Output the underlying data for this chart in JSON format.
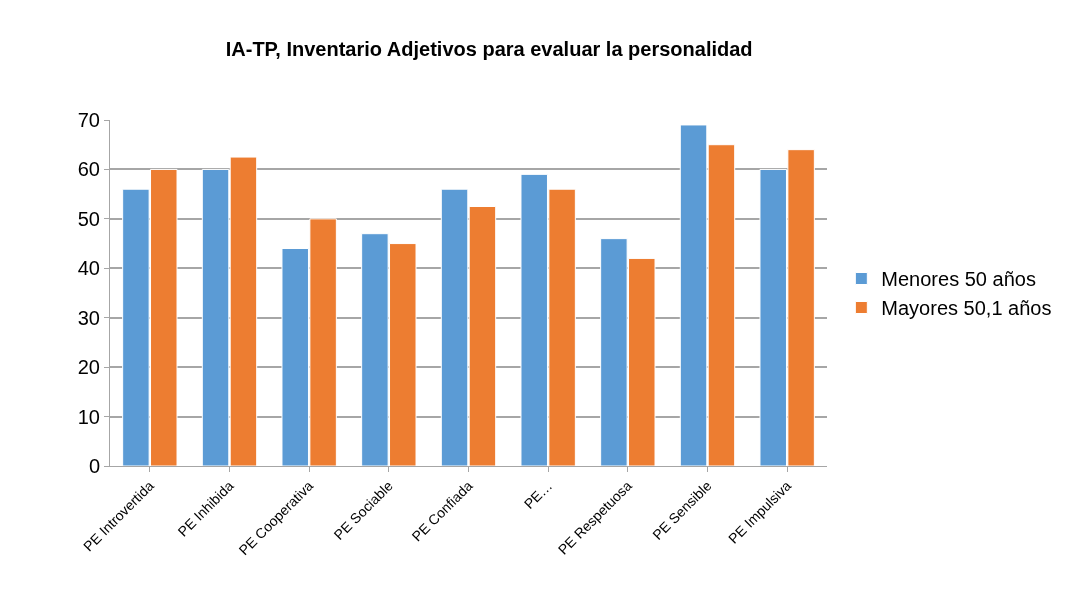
{
  "chart_data": {
    "type": "bar",
    "title": "IA-TP, Inventario Adjetivos para evaluar la personalidad",
    "categories": [
      "PE Introvertida",
      "PE Inhibida",
      "PE Cooperativa",
      "PE Sociable",
      "PE Confiada",
      "PE…",
      "PE Respetuosa",
      "PE Sensible",
      "PE Impulsiva"
    ],
    "series": [
      {
        "name": "Menores 50 años",
        "color": "#5b9bd5",
        "values": [
          56,
          60,
          44,
          47,
          56,
          59,
          46,
          69,
          60
        ]
      },
      {
        "name": "Mayores 50,1 años",
        "color": "#ed7d31",
        "values": [
          60,
          62.5,
          50,
          45,
          52.5,
          56,
          42,
          65,
          64
        ]
      }
    ],
    "ylim": [
      0,
      70
    ],
    "yticks": [
      0,
      10,
      20,
      30,
      40,
      50,
      60,
      70
    ],
    "grid": "y",
    "legend": "right"
  }
}
